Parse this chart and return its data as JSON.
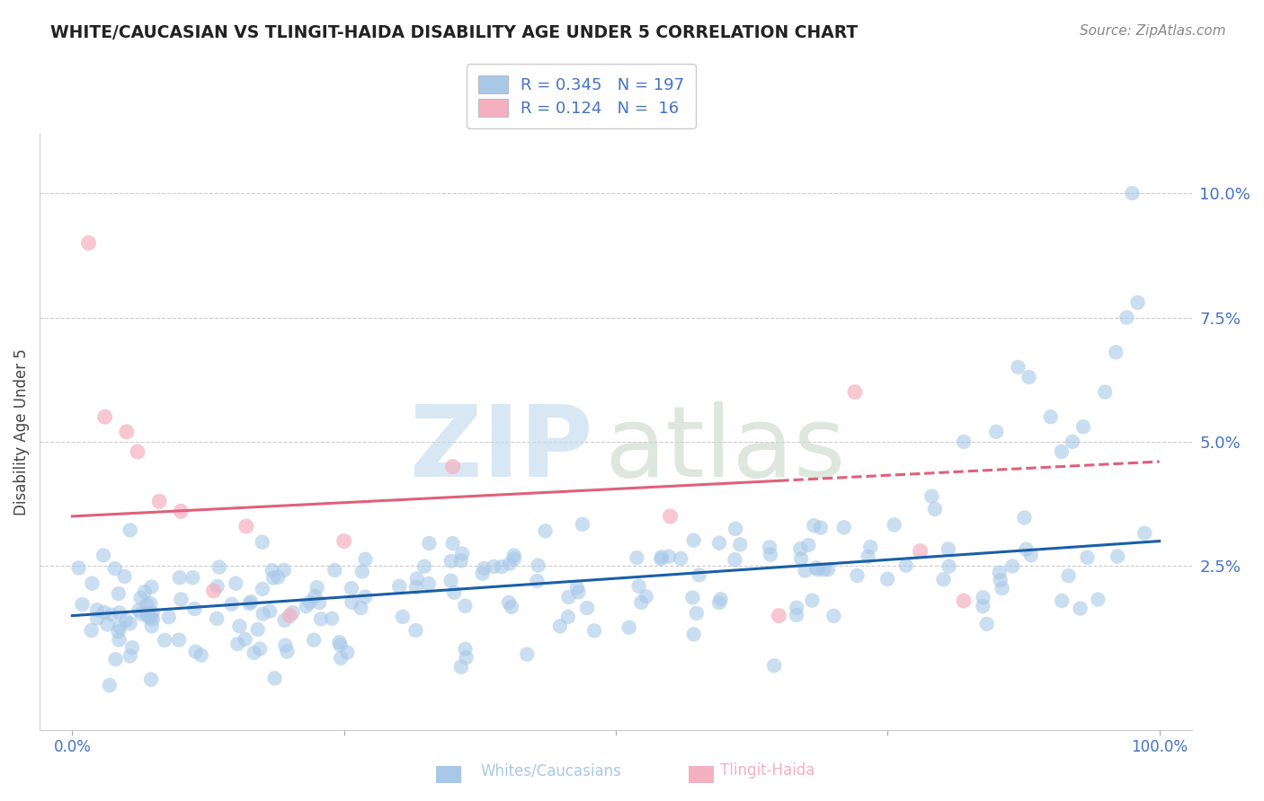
{
  "title": "WHITE/CAUCASIAN VS TLINGIT-HAIDA DISABILITY AGE UNDER 5 CORRELATION CHART",
  "source": "Source: ZipAtlas.com",
  "ylabel": "Disability Age Under 5",
  "xlabel": "",
  "legend_label1": "Whites/Caucasians",
  "legend_label2": "Tlingit-Haida",
  "R1": 0.345,
  "N1": 197,
  "R2": 0.124,
  "N2": 16,
  "blue_scatter_color": "#a8c8e8",
  "pink_scatter_color": "#f4b0c0",
  "blue_line_color": "#1a5fa8",
  "pink_line_color": "#e0607a",
  "blue_legend_color": "#a8c8e8",
  "pink_legend_color": "#f4b0c0",
  "text_color_dark": "#333333",
  "text_color_blue": "#4472c4",
  "background_color": "#ffffff",
  "xlim": [
    -3,
    103
  ],
  "ylim": [
    -0.8,
    11.2
  ],
  "blue_line_x0": 0,
  "blue_line_y0": 1.5,
  "blue_line_x1": 100,
  "blue_line_y1": 3.0,
  "pink_line_x0": 0,
  "pink_line_y0": 3.5,
  "pink_line_x1": 100,
  "pink_line_y1": 4.6,
  "pink_dash_start": 65
}
